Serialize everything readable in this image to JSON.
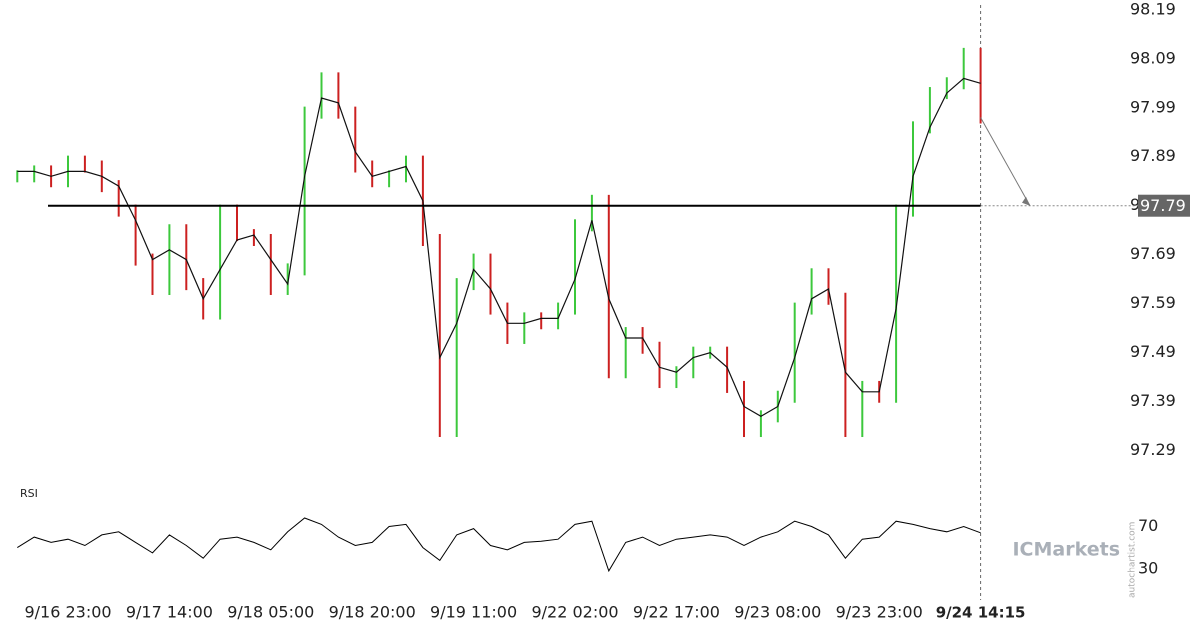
{
  "chart_data": {
    "type": "price",
    "categories": [
      null,
      null,
      null,
      "9/16 23:00",
      null,
      null,
      null,
      null,
      null,
      "9/17 14:00",
      null,
      null,
      null,
      null,
      null,
      "9/18 05:00",
      null,
      null,
      null,
      null,
      null,
      "9/18 20:00",
      null,
      null,
      null,
      null,
      null,
      "9/19 11:00",
      null,
      null,
      null,
      null,
      null,
      "9/22 02:00",
      null,
      null,
      null,
      null,
      null,
      "9/22 17:00",
      null,
      null,
      null,
      null,
      null,
      "9/23 08:00",
      null,
      null,
      null,
      null,
      null,
      "9/23 23:00",
      null,
      null,
      null,
      null,
      null,
      "9/24 14:15"
    ],
    "values": [
      97.85,
      97.86,
      97.84,
      97.88,
      97.87,
      97.83,
      97.78,
      97.68,
      97.62,
      97.74,
      97.63,
      97.57,
      97.78,
      97.73,
      97.72,
      97.62,
      97.66,
      97.98,
      98.05,
      97.98,
      97.87,
      97.84,
      97.85,
      97.88,
      97.72,
      97.33,
      97.63,
      97.68,
      97.58,
      97.52,
      97.56,
      97.55,
      97.58,
      97.75,
      97.8,
      97.45,
      97.53,
      97.5,
      97.43,
      97.45,
      97.49,
      97.49,
      97.42,
      97.33,
      97.36,
      97.4,
      97.58,
      97.65,
      97.6,
      97.33,
      97.42,
      97.4,
      97.78,
      97.95,
      98.02,
      98.04,
      98.1,
      97.97
    ],
    "moving_average": [
      97.86,
      97.86,
      97.85,
      97.86,
      97.86,
      97.85,
      97.83,
      97.76,
      97.68,
      97.7,
      97.68,
      97.6,
      97.66,
      97.72,
      97.73,
      97.68,
      97.63,
      97.85,
      98.01,
      98.0,
      97.9,
      97.85,
      97.86,
      97.87,
      97.8,
      97.48,
      97.55,
      97.66,
      97.62,
      97.55,
      97.55,
      97.56,
      97.56,
      97.64,
      97.76,
      97.6,
      97.52,
      97.52,
      97.46,
      97.45,
      97.48,
      97.49,
      97.46,
      97.38,
      97.36,
      97.38,
      97.48,
      97.6,
      97.62,
      97.45,
      97.41,
      97.41,
      97.58,
      97.85,
      97.95,
      98.02,
      98.05,
      98.04
    ],
    "up_color": "#3cc83c",
    "down_color": "#cc2020",
    "ma_color": "#111111",
    "ylim": [
      97.23,
      98.21
    ],
    "yticks": [
      98.19,
      98.09,
      97.99,
      97.89,
      97.79,
      97.69,
      97.59,
      97.49,
      97.39,
      97.29
    ],
    "level": 97.79,
    "rsi": {
      "label": "RSI",
      "values": [
        50,
        60,
        55,
        58,
        52,
        62,
        65,
        55,
        45,
        62,
        52,
        40,
        58,
        60,
        55,
        48,
        65,
        78,
        72,
        60,
        52,
        55,
        70,
        72,
        50,
        38,
        62,
        68,
        52,
        48,
        55,
        56,
        58,
        72,
        75,
        28,
        55,
        60,
        52,
        58,
        60,
        62,
        60,
        52,
        60,
        65,
        75,
        70,
        62,
        40,
        58,
        60,
        75,
        72,
        68,
        65,
        70,
        64
      ],
      "ylim": [
        10,
        95
      ],
      "yticks": [
        70,
        30
      ]
    },
    "watermark": "ICMarkets",
    "source": "autochartist.com"
  }
}
